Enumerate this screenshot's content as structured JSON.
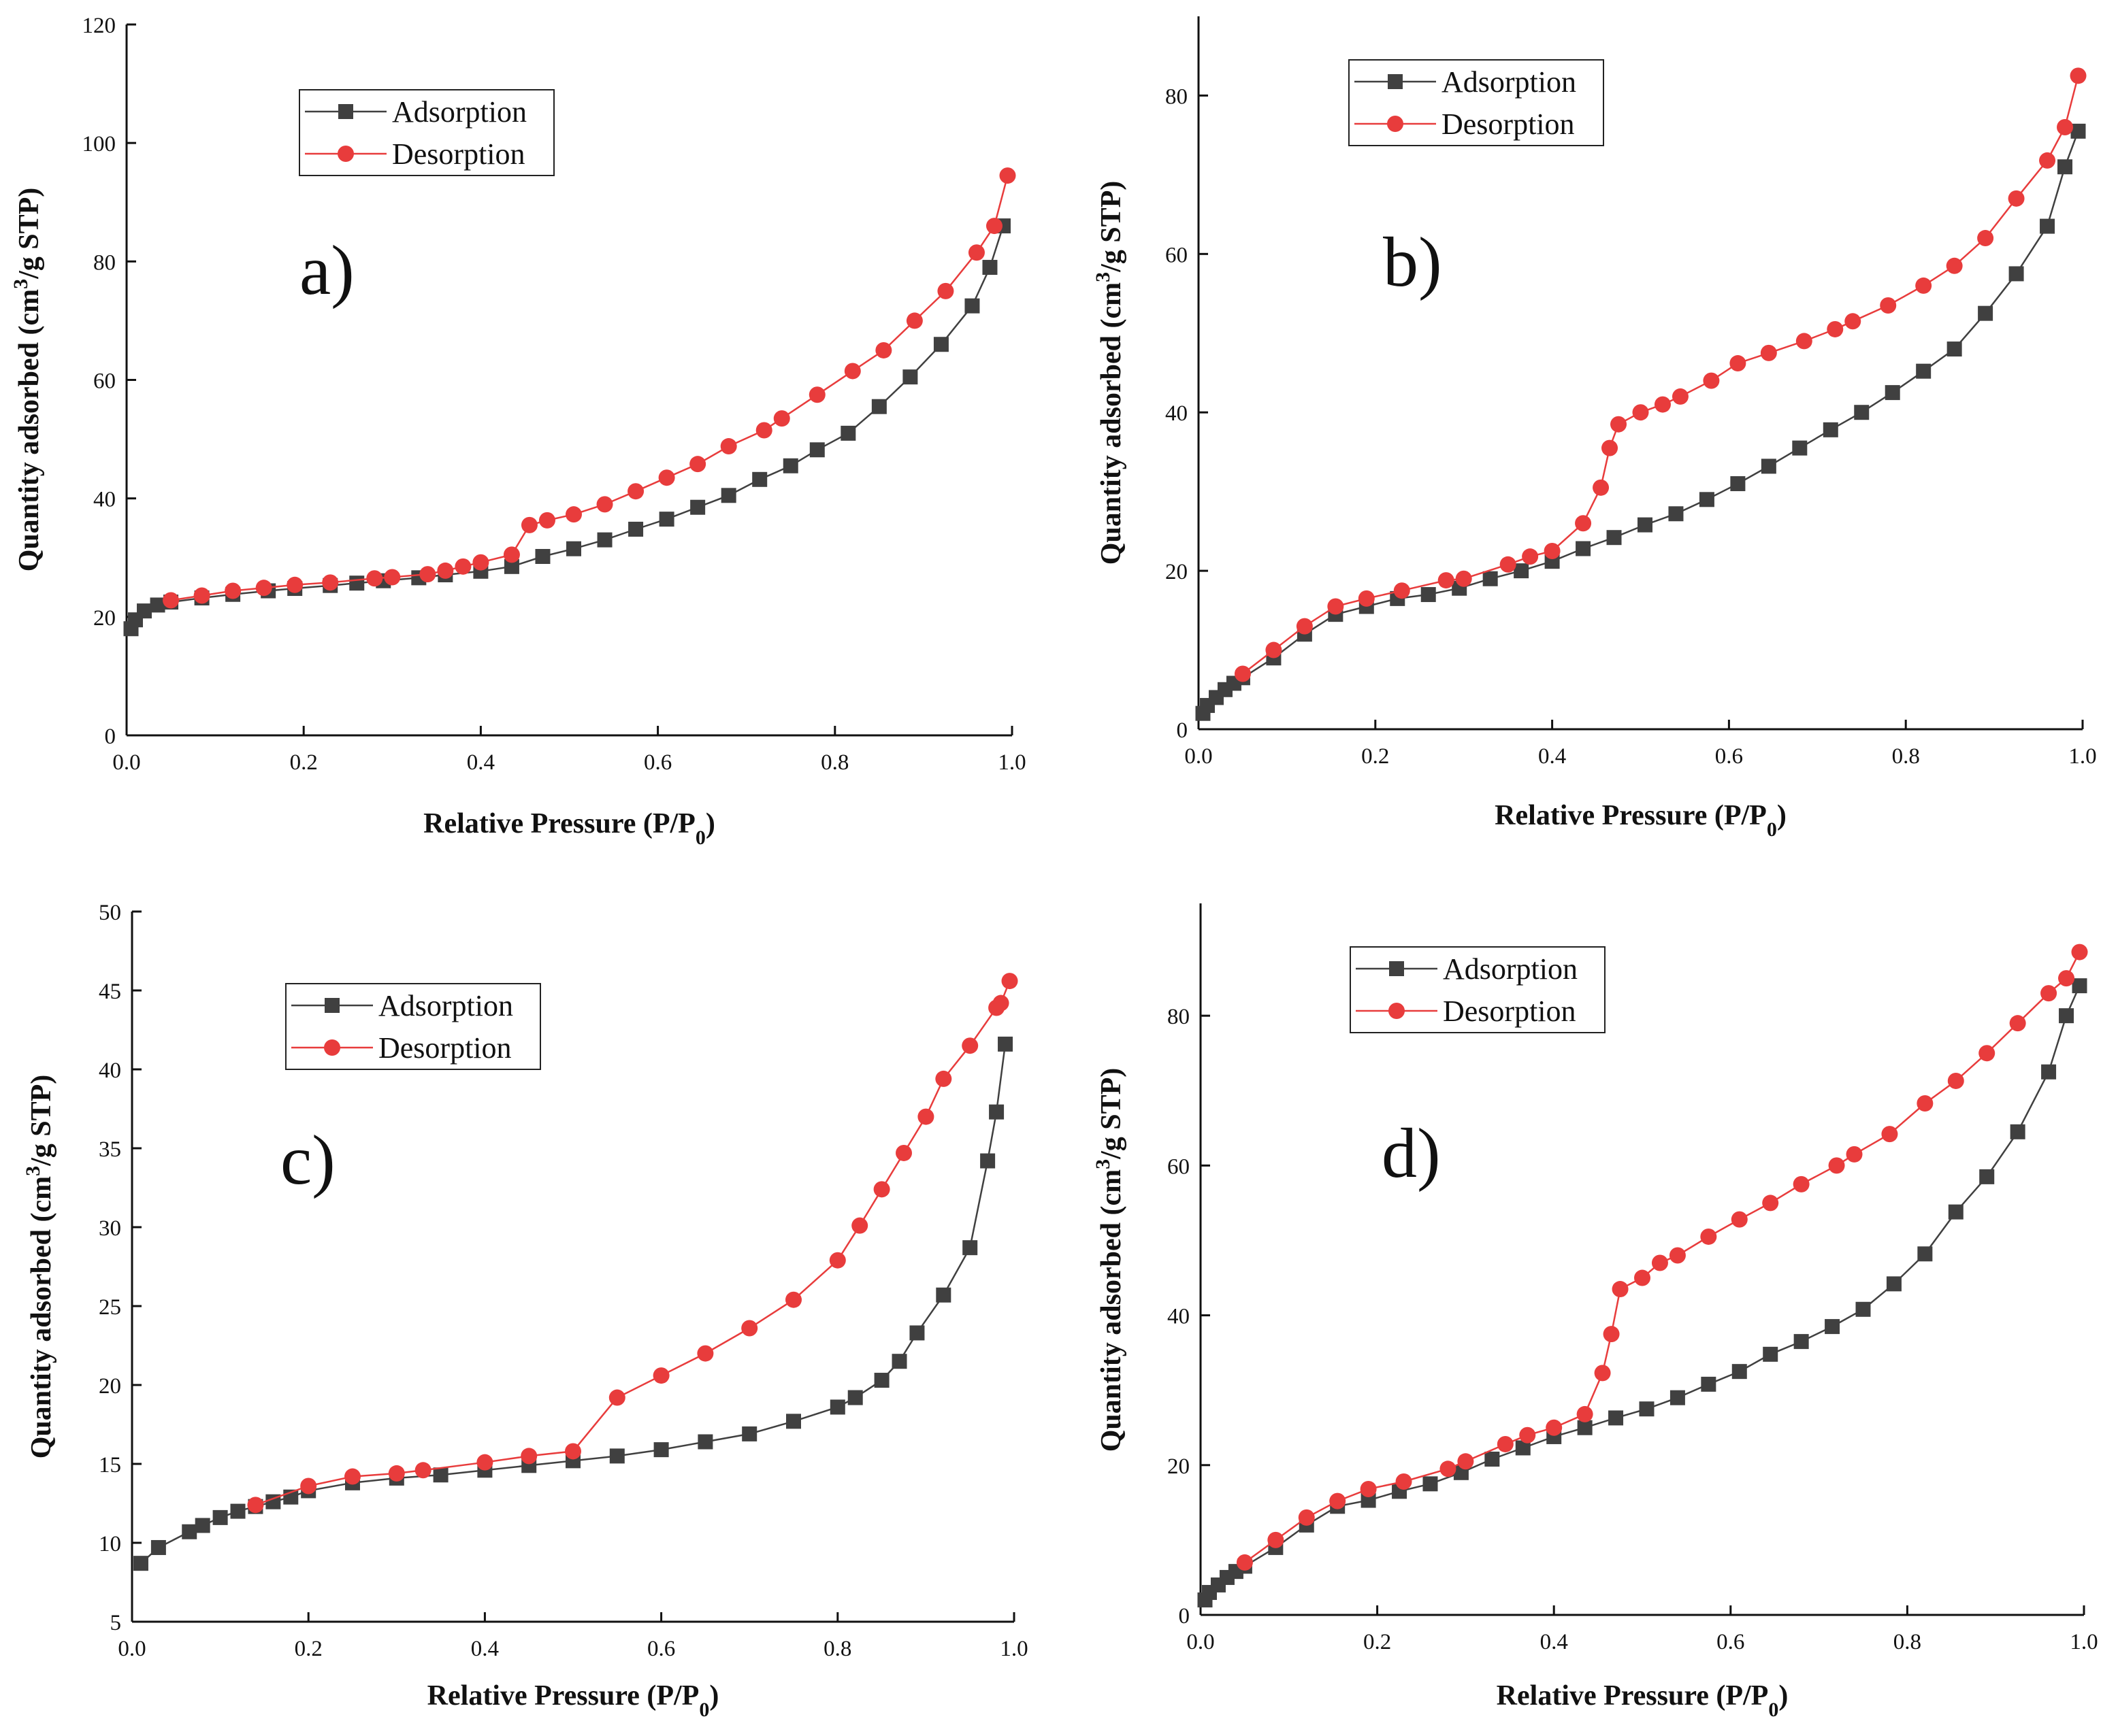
{
  "chart_data": [
    {
      "type": "line",
      "panel_label": "a)",
      "title": "",
      "xlabel": "Relative Pressure (P/P",
      "xlabel_sub": "0",
      "xlabel_end": ")",
      "ylabel": "Quantity adsorbed (cm",
      "ylabel_sup": "3",
      "ylabel_end": "/g STP)",
      "xlim": [
        0,
        1
      ],
      "ylim": [
        0,
        120
      ],
      "xticks": [
        0.0,
        0.2,
        0.4,
        0.6,
        0.8,
        1.0
      ],
      "xtick_labels": [
        "0.0",
        "0.2",
        "0.4",
        "0.6",
        "0.8",
        "1.0"
      ],
      "yticks": [
        0,
        20,
        40,
        60,
        80,
        100,
        120
      ],
      "ytick_labels": [
        "0",
        "20",
        "40",
        "60",
        "80",
        "100",
        "120"
      ],
      "legend_position": "upper-left",
      "series": [
        {
          "name": "Adsorption",
          "color": "#404040",
          "marker": "square",
          "x": [
            0.005,
            0.01,
            0.02,
            0.035,
            0.05,
            0.085,
            0.12,
            0.16,
            0.19,
            0.23,
            0.26,
            0.29,
            0.33,
            0.36,
            0.4,
            0.435,
            0.47,
            0.505,
            0.54,
            0.575,
            0.61,
            0.645,
            0.68,
            0.715,
            0.75,
            0.78,
            0.815,
            0.85,
            0.885,
            0.92,
            0.955,
            0.975,
            0.99
          ],
          "y": [
            18,
            19.5,
            21,
            22,
            22.5,
            23.2,
            23.8,
            24.4,
            24.8,
            25.3,
            25.7,
            26.1,
            26.6,
            27.1,
            27.7,
            28.5,
            30.2,
            31.5,
            33,
            34.8,
            36.5,
            38.5,
            40.5,
            43.2,
            45.5,
            48.2,
            51,
            55.5,
            60.5,
            66,
            72.5,
            79,
            86
          ]
        },
        {
          "name": "Desorption",
          "color": "#e83c3c",
          "marker": "circle",
          "x": [
            0.995,
            0.98,
            0.96,
            0.925,
            0.89,
            0.855,
            0.82,
            0.78,
            0.74,
            0.72,
            0.68,
            0.645,
            0.61,
            0.575,
            0.54,
            0.505,
            0.475,
            0.455,
            0.435,
            0.4,
            0.38,
            0.36,
            0.34,
            0.3,
            0.28,
            0.23,
            0.19,
            0.155,
            0.12,
            0.085,
            0.05
          ],
          "y": [
            94.5,
            86,
            81.5,
            75,
            70,
            65,
            61.5,
            57.5,
            53.5,
            51.5,
            48.8,
            45.8,
            43.5,
            41.2,
            39,
            37.3,
            36.3,
            35.5,
            30.5,
            29.2,
            28.5,
            27.8,
            27.2,
            26.7,
            26.5,
            25.8,
            25.4,
            24.9,
            24.4,
            23.6,
            22.8
          ]
        }
      ]
    },
    {
      "type": "line",
      "panel_label": "b)",
      "title": "",
      "xlabel": "Relative Pressure (P/P",
      "xlabel_sub": "0",
      "xlabel_end": ")",
      "ylabel": "Quantity adsorbed (cm",
      "ylabel_sup": "3",
      "ylabel_end": "/g STP)",
      "xlim": [
        0,
        1
      ],
      "ylim": [
        0,
        90
      ],
      "xticks": [
        0.0,
        0.2,
        0.4,
        0.6,
        0.8,
        1.0
      ],
      "xtick_labels": [
        "0.0",
        "0.2",
        "0.4",
        "0.6",
        "0.8",
        "1.0"
      ],
      "yticks": [
        0,
        20,
        40,
        60,
        80
      ],
      "ytick_labels": [
        "0",
        "20",
        "40",
        "60",
        "80"
      ],
      "legend_position": "upper-left",
      "series": [
        {
          "name": "Adsorption",
          "color": "#404040",
          "marker": "square",
          "x": [
            0.005,
            0.01,
            0.02,
            0.03,
            0.04,
            0.05,
            0.085,
            0.12,
            0.155,
            0.19,
            0.225,
            0.26,
            0.295,
            0.33,
            0.365,
            0.4,
            0.435,
            0.47,
            0.505,
            0.54,
            0.575,
            0.61,
            0.645,
            0.68,
            0.715,
            0.75,
            0.785,
            0.82,
            0.855,
            0.89,
            0.925,
            0.96,
            0.98,
            0.995
          ],
          "y": [
            2,
            3,
            4,
            5,
            5.8,
            6.5,
            9,
            12,
            14.5,
            15.5,
            16.5,
            17,
            17.8,
            19,
            20,
            21.2,
            22.8,
            24.2,
            25.8,
            27.2,
            29,
            31,
            33.2,
            35.5,
            37.8,
            40,
            42.5,
            45.2,
            48,
            52.5,
            57.5,
            63.5,
            71,
            75.5
          ]
        },
        {
          "name": "Desorption",
          "color": "#e83c3c",
          "marker": "circle",
          "x": [
            0.995,
            0.98,
            0.96,
            0.925,
            0.89,
            0.855,
            0.82,
            0.78,
            0.74,
            0.72,
            0.685,
            0.645,
            0.61,
            0.58,
            0.545,
            0.525,
            0.5,
            0.475,
            0.465,
            0.455,
            0.435,
            0.4,
            0.375,
            0.35,
            0.3,
            0.28,
            0.23,
            0.19,
            0.155,
            0.12,
            0.085,
            0.05
          ],
          "y": [
            82.5,
            76,
            71.8,
            67,
            62,
            58.5,
            56,
            53.5,
            51.5,
            50.5,
            49,
            47.5,
            46.2,
            44,
            42,
            41,
            40,
            38.5,
            35.5,
            30.5,
            26,
            22.5,
            21.8,
            20.8,
            19,
            18.8,
            17.5,
            16.5,
            15.5,
            13,
            10,
            7
          ]
        }
      ]
    },
    {
      "type": "line",
      "panel_label": "c)",
      "title": "",
      "xlabel": "Relative Pressure (P/P",
      "xlabel_sub": "0",
      "xlabel_end": ")",
      "ylabel": "Quantity adsorbed (cm",
      "ylabel_sup": "3",
      "ylabel_end": "/g STP)",
      "xlim": [
        0,
        1
      ],
      "ylim": [
        5,
        50
      ],
      "xticks": [
        0.0,
        0.2,
        0.4,
        0.6,
        0.8,
        1.0
      ],
      "xtick_labels": [
        "0.0",
        "0.2",
        "0.4",
        "0.6",
        "0.8",
        "1.0"
      ],
      "yticks": [
        5,
        10,
        15,
        20,
        25,
        30,
        35,
        40,
        45,
        50
      ],
      "ytick_labels": [
        "5",
        "10",
        "15",
        "20",
        "25",
        "30",
        "35",
        "40",
        "45",
        "50"
      ],
      "legend_position": "upper-left",
      "series": [
        {
          "name": "Adsorption",
          "color": "#404040",
          "marker": "square",
          "x": [
            0.01,
            0.03,
            0.065,
            0.08,
            0.1,
            0.12,
            0.14,
            0.16,
            0.18,
            0.2,
            0.25,
            0.3,
            0.35,
            0.4,
            0.45,
            0.5,
            0.55,
            0.6,
            0.65,
            0.7,
            0.75,
            0.8,
            0.82,
            0.85,
            0.87,
            0.89,
            0.92,
            0.95,
            0.97,
            0.98,
            0.99
          ],
          "y": [
            8.7,
            9.7,
            10.7,
            11.1,
            11.6,
            12,
            12.3,
            12.6,
            12.9,
            13.3,
            13.8,
            14.1,
            14.3,
            14.6,
            14.9,
            15.2,
            15.5,
            15.9,
            16.4,
            16.9,
            17.7,
            18.6,
            19.2,
            20.3,
            21.5,
            23.3,
            25.7,
            28.7,
            34.2,
            37.3,
            41.6
          ]
        },
        {
          "name": "Desorption",
          "color": "#e83c3c",
          "marker": "circle",
          "x": [
            0.995,
            0.985,
            0.98,
            0.95,
            0.92,
            0.9,
            0.875,
            0.85,
            0.825,
            0.8,
            0.75,
            0.7,
            0.65,
            0.6,
            0.55,
            0.5,
            0.45,
            0.4,
            0.33,
            0.3,
            0.25,
            0.2,
            0.14
          ],
          "y": [
            45.6,
            44.2,
            43.9,
            41.5,
            39.4,
            37,
            34.7,
            32.4,
            30.1,
            27.9,
            25.4,
            23.6,
            22,
            20.6,
            19.2,
            15.8,
            15.5,
            15.1,
            14.6,
            14.4,
            14.2,
            13.6,
            12.4
          ]
        }
      ]
    },
    {
      "type": "line",
      "panel_label": "d)",
      "title": "",
      "xlabel": "Relative Pressure (P/P",
      "xlabel_sub": "0",
      "xlabel_end": ")",
      "ylabel": "Quantity adsorbed (cm",
      "ylabel_sup": "3",
      "ylabel_end": "/g STP)",
      "xlim": [
        0,
        1
      ],
      "ylim": [
        0,
        95
      ],
      "xticks": [
        0.0,
        0.2,
        0.4,
        0.6,
        0.8,
        1.0
      ],
      "xtick_labels": [
        "0.0",
        "0.2",
        "0.4",
        "0.6",
        "0.8",
        "1.0"
      ],
      "yticks": [
        0,
        20,
        40,
        60,
        80
      ],
      "ytick_labels": [
        "0",
        "20",
        "40",
        "60",
        "80"
      ],
      "legend_position": "upper-left",
      "series": [
        {
          "name": "Adsorption",
          "color": "#404040",
          "marker": "square",
          "x": [
            0.005,
            0.01,
            0.02,
            0.03,
            0.04,
            0.05,
            0.085,
            0.12,
            0.155,
            0.19,
            0.225,
            0.26,
            0.295,
            0.33,
            0.365,
            0.4,
            0.435,
            0.47,
            0.505,
            0.54,
            0.575,
            0.61,
            0.645,
            0.68,
            0.715,
            0.75,
            0.785,
            0.82,
            0.855,
            0.89,
            0.925,
            0.96,
            0.98,
            0.995
          ],
          "y": [
            2,
            3,
            4,
            5,
            5.8,
            6.5,
            9,
            12,
            14.5,
            15.3,
            16.5,
            17.5,
            19,
            20.8,
            22.3,
            23.8,
            25,
            26.3,
            27.5,
            29,
            30.8,
            32.5,
            34.8,
            36.5,
            38.5,
            40.8,
            44.2,
            48.2,
            53.8,
            58.5,
            64.5,
            72.5,
            80,
            84
          ]
        },
        {
          "name": "Desorption",
          "color": "#e83c3c",
          "marker": "circle",
          "x": [
            0.995,
            0.98,
            0.96,
            0.925,
            0.89,
            0.855,
            0.82,
            0.78,
            0.74,
            0.72,
            0.68,
            0.645,
            0.61,
            0.575,
            0.54,
            0.52,
            0.5,
            0.475,
            0.465,
            0.455,
            0.435,
            0.4,
            0.37,
            0.345,
            0.3,
            0.28,
            0.23,
            0.19,
            0.155,
            0.12,
            0.085,
            0.05
          ],
          "y": [
            88.5,
            85,
            83,
            79,
            75,
            71.3,
            68.3,
            64.2,
            61.5,
            60,
            57.5,
            55,
            52.8,
            50.5,
            48,
            47,
            45,
            43.5,
            37.5,
            32.3,
            26.8,
            25,
            24,
            22.8,
            20.5,
            19.5,
            17.8,
            16.8,
            15.2,
            13,
            10,
            7
          ]
        }
      ]
    }
  ]
}
